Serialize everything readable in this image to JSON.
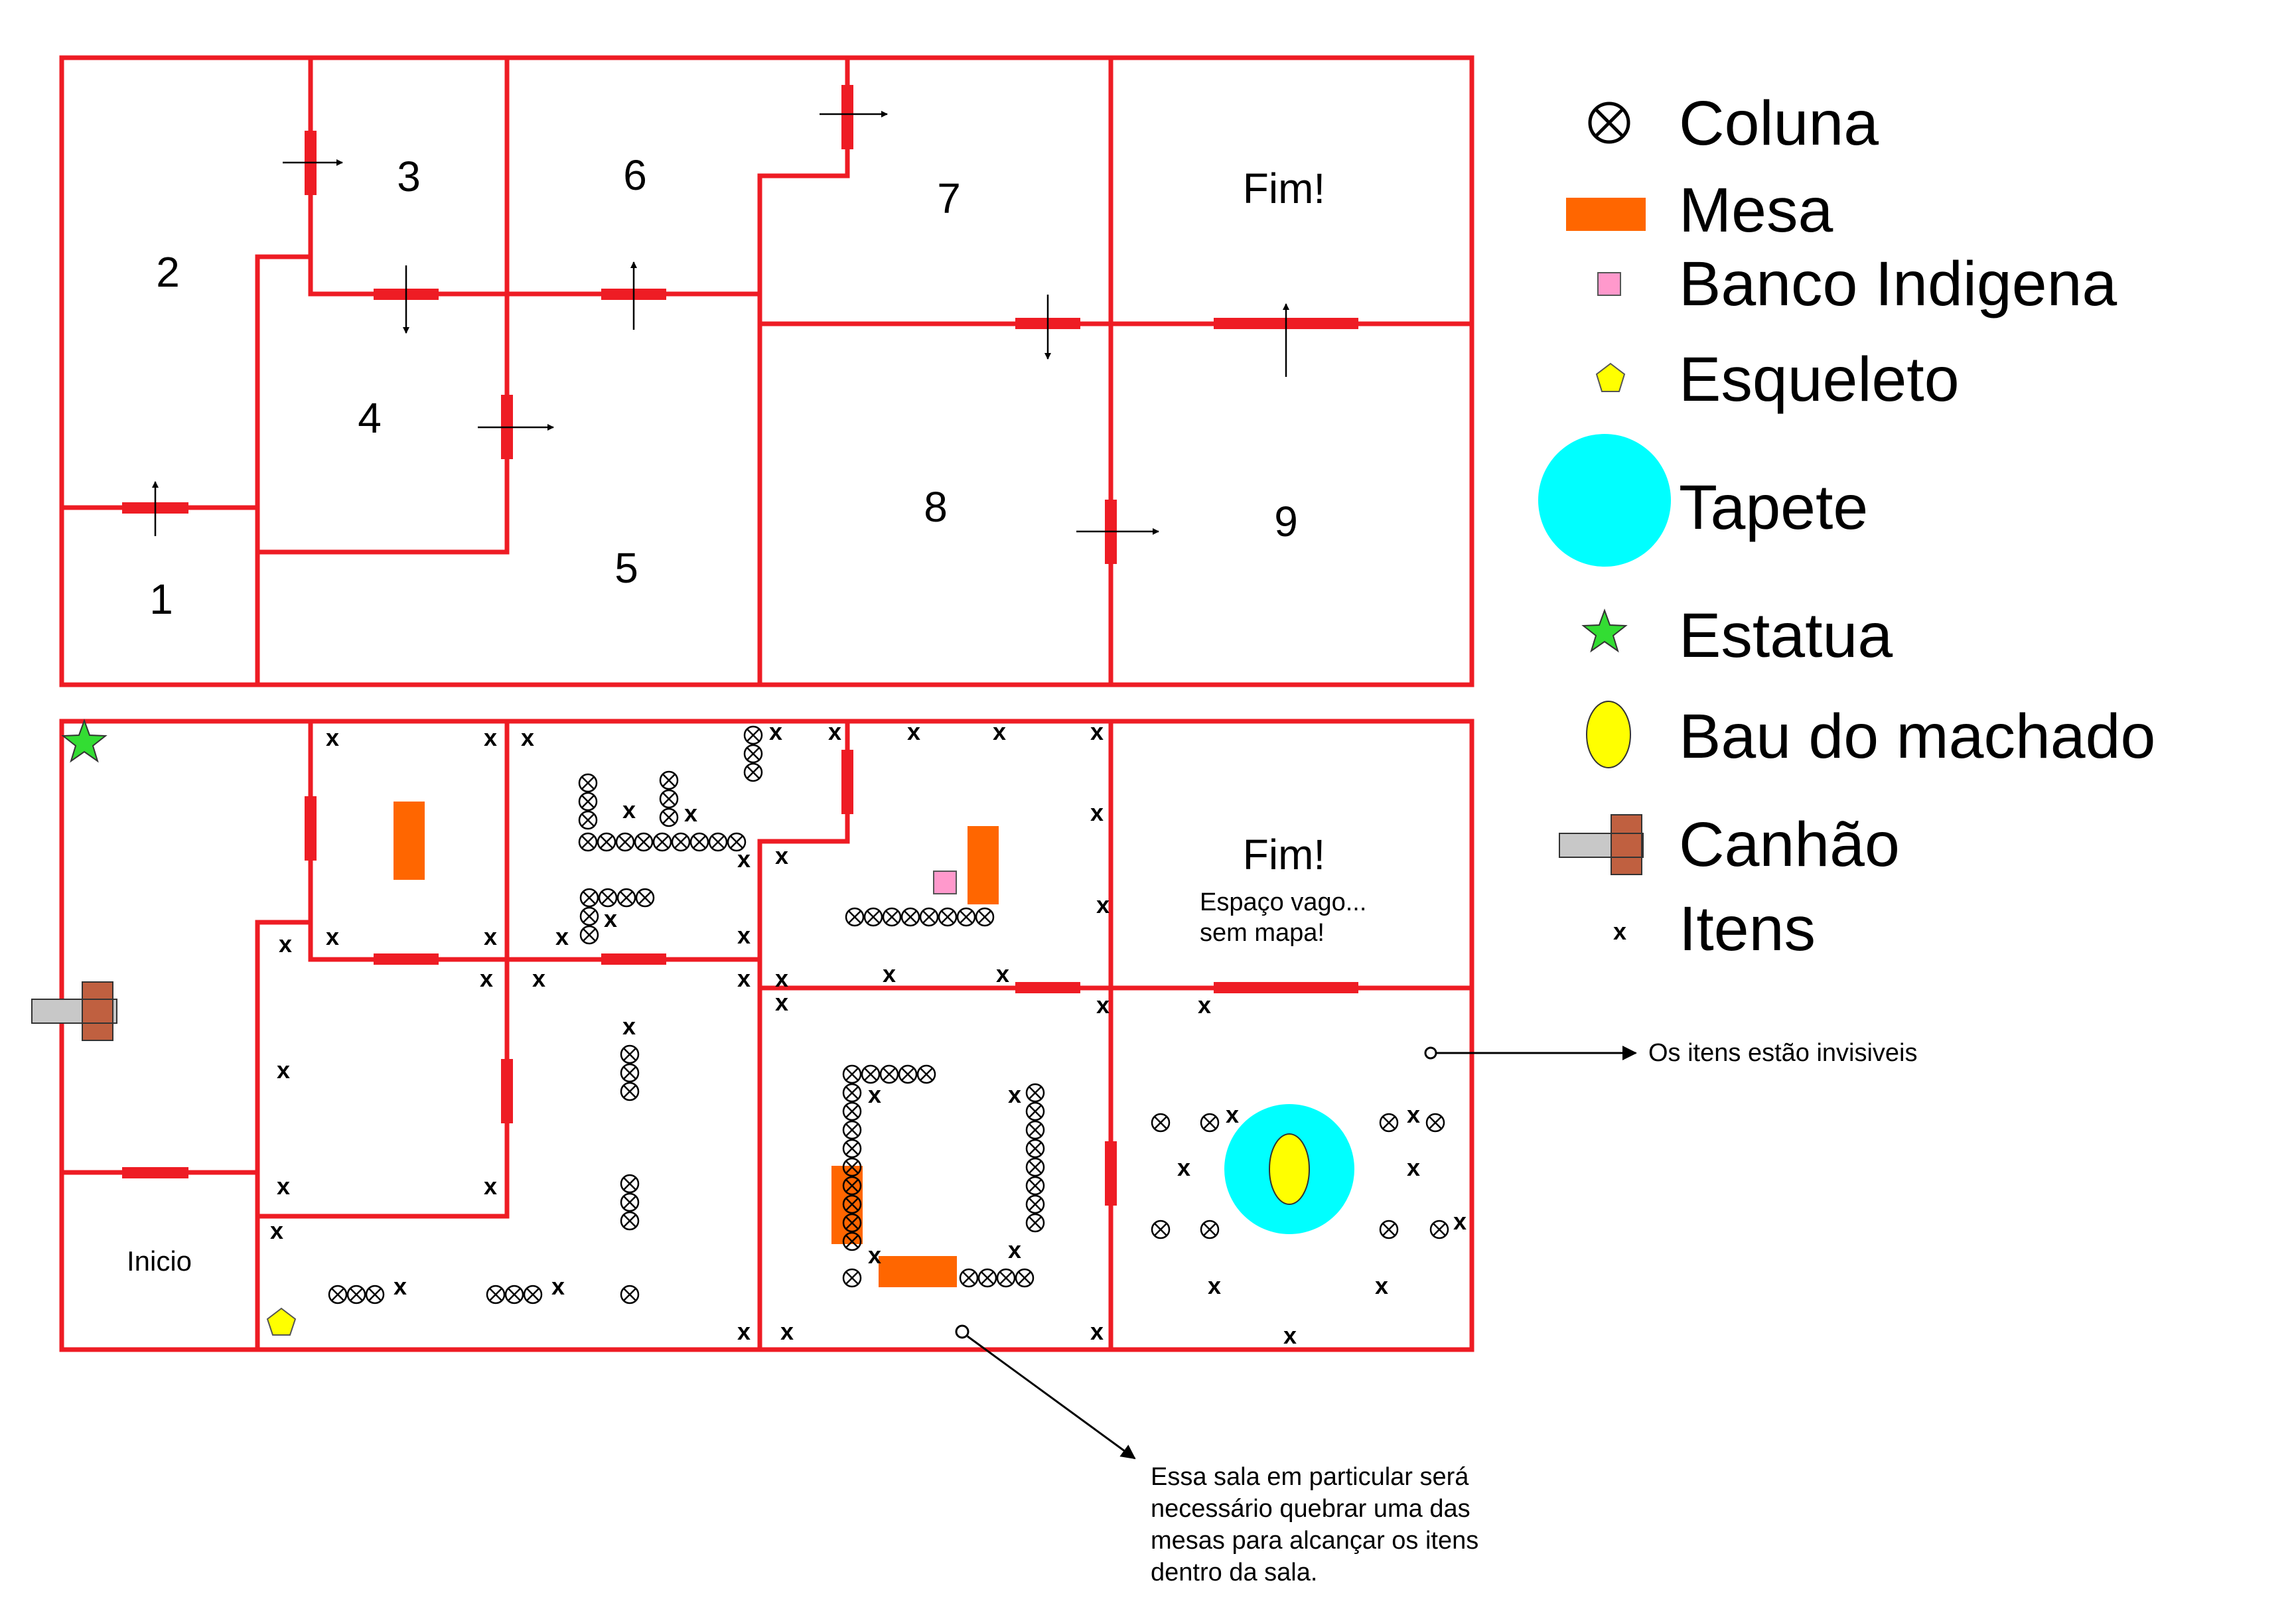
{
  "colors": {
    "wall": "#ee1c24",
    "table": "#ff6600",
    "bench": "#ff99cc",
    "skeleton": "#ffff00",
    "carpet": "#00ffff",
    "statue": "#33dd33",
    "chest": "#ffff00",
    "cannon_barrel": "#c8c8c8",
    "cannon_body": "#c06040"
  },
  "top_map": {
    "rooms": [
      {
        "id": "room-1",
        "label": "1"
      },
      {
        "id": "room-2",
        "label": "2"
      },
      {
        "id": "room-3",
        "label": "3"
      },
      {
        "id": "room-4",
        "label": "4"
      },
      {
        "id": "room-5",
        "label": "5"
      },
      {
        "id": "room-6",
        "label": "6"
      },
      {
        "id": "room-7",
        "label": "7"
      },
      {
        "id": "room-8",
        "label": "8"
      },
      {
        "id": "room-9",
        "label": "9"
      }
    ],
    "end_label": "Fim!"
  },
  "bottom_map": {
    "start_label": "Inicio",
    "end_label": "Fim!",
    "vacant_note": "Espaço vago...\nsem mapa!",
    "item_mark": "x"
  },
  "legend": [
    {
      "icon": "column-icon",
      "label": "Coluna"
    },
    {
      "icon": "table-icon",
      "label": "Mesa"
    },
    {
      "icon": "bench-icon",
      "label": "Banco Indigena"
    },
    {
      "icon": "skeleton-icon",
      "label": "Esqueleto"
    },
    {
      "icon": "carpet-icon",
      "label": "Tapete"
    },
    {
      "icon": "statue-icon",
      "label": "Estatua"
    },
    {
      "icon": "chest-icon",
      "label": "Bau do machado"
    },
    {
      "icon": "cannon-icon",
      "label": "Canhão"
    },
    {
      "icon": "item-icon",
      "label": "Itens"
    }
  ],
  "annotations": {
    "invisible_items": "Os itens estão invisiveis",
    "break_table_note": "Essa sala em particular será\nnecessário quebrar uma das\nmesas para alcançar os itens\ndentro da sala."
  }
}
